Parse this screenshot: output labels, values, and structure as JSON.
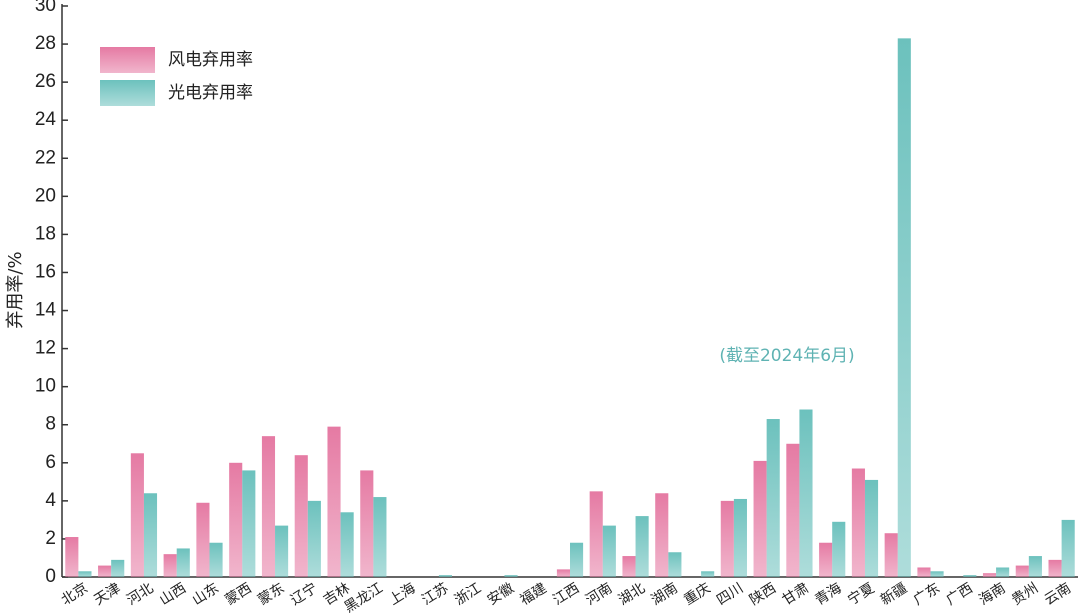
{
  "chart_data": {
    "type": "bar",
    "y_label": "弃用率/%",
    "annotation": "(截至2024年6月)",
    "categories": [
      "北京",
      "天津",
      "河北",
      "山西",
      "山东",
      "蒙西",
      "蒙东",
      "辽宁",
      "吉林",
      "黑龙江",
      "上海",
      "江苏",
      "浙江",
      "安徽",
      "福建",
      "江西",
      "河南",
      "湖北",
      "湖南",
      "重庆",
      "四川",
      "陕西",
      "甘肃",
      "青海",
      "宁夏",
      "新疆",
      "广东",
      "广西",
      "海南",
      "贵州",
      "云南"
    ],
    "series": [
      {
        "name": "风电弃用率",
        "color": "#e57aa3",
        "values": [
          2.1,
          0.6,
          6.5,
          1.2,
          3.9,
          6.0,
          7.4,
          6.4,
          7.9,
          5.6,
          0,
          0,
          0,
          0,
          0,
          0.4,
          4.5,
          1.1,
          4.4,
          0,
          4.0,
          6.1,
          7.0,
          1.8,
          5.7,
          2.3,
          0.5,
          0,
          0.2,
          0.6,
          0.9
        ]
      },
      {
        "name": "光电弃用率",
        "color": "#6cc1bd",
        "values": [
          0.3,
          0.9,
          4.4,
          1.5,
          1.8,
          5.6,
          2.7,
          4.0,
          3.4,
          4.2,
          0,
          0.1,
          0,
          0.1,
          0,
          1.8,
          2.7,
          3.2,
          1.3,
          0.3,
          4.1,
          8.3,
          8.8,
          2.9,
          5.1,
          28.3,
          0.3,
          0.1,
          0.5,
          1.1,
          3.0
        ]
      }
    ],
    "ylim": [
      0,
      30
    ],
    "yticks": [
      0,
      2,
      4,
      6,
      8,
      10,
      12,
      14,
      16,
      18,
      20,
      22,
      24,
      26,
      28,
      30
    ],
    "legend": "upper-left"
  }
}
